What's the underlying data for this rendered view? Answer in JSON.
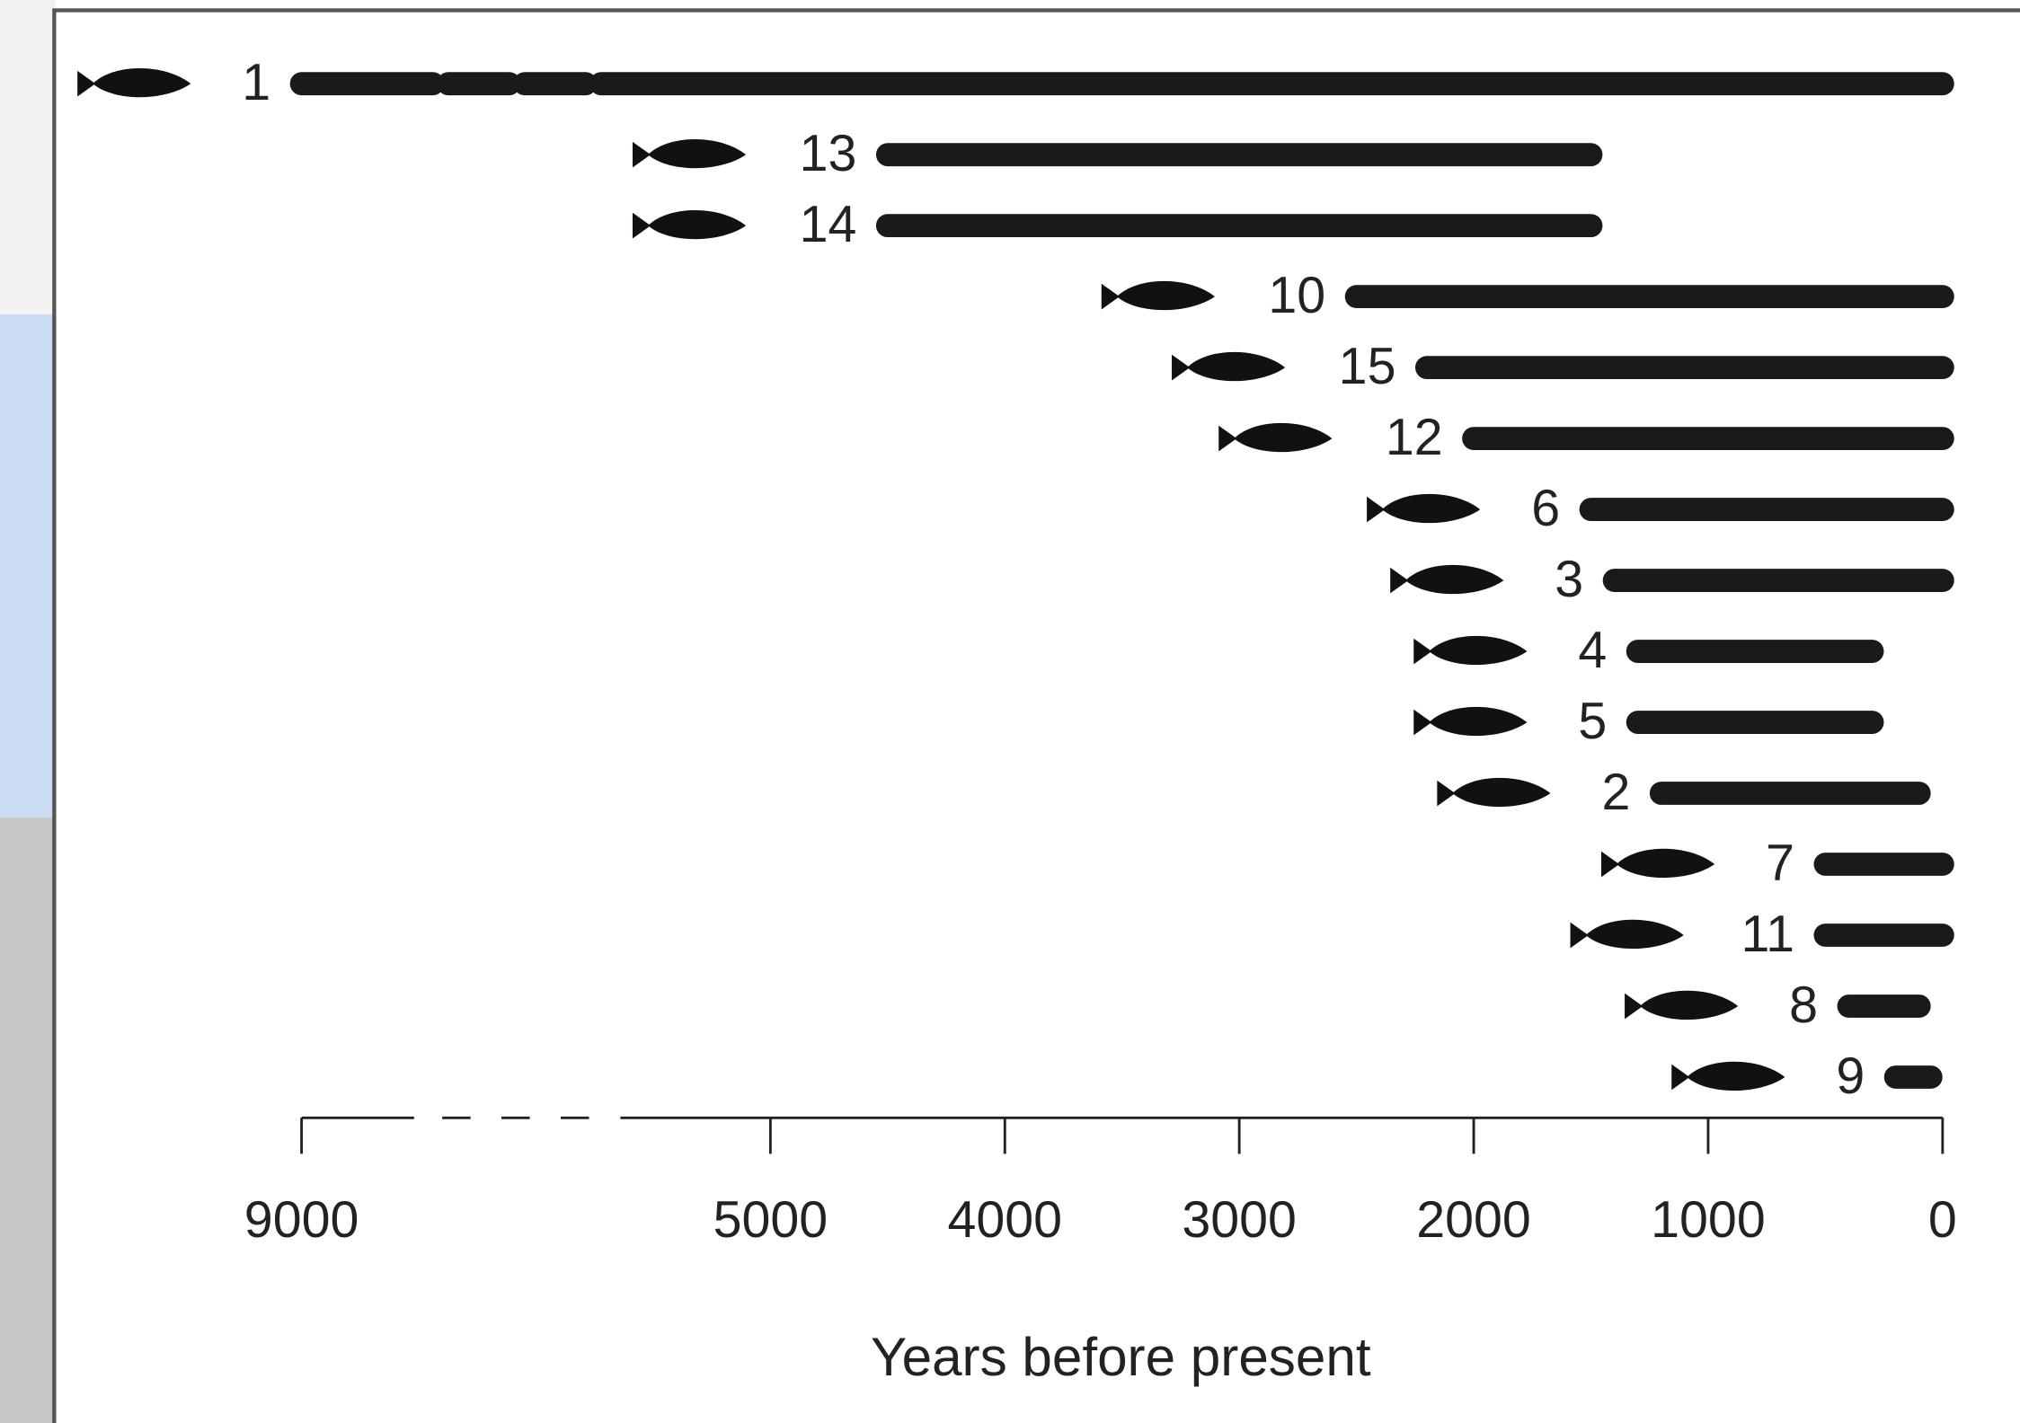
{
  "chart_data": {
    "type": "range_bar",
    "x_label": "Years before present",
    "categories": [
      "1",
      "13",
      "14",
      "10",
      "15",
      "12",
      "6",
      "3",
      "4",
      "5",
      "2",
      "7",
      "11",
      "8",
      "9"
    ],
    "starts": [
      9000,
      4500,
      4500,
      2500,
      2200,
      2000,
      1500,
      1400,
      1300,
      1300,
      1200,
      500,
      500,
      400,
      200
    ],
    "ends": [
      0,
      1500,
      1500,
      0,
      0,
      0,
      0,
      0,
      300,
      300,
      100,
      0,
      0,
      100,
      50
    ],
    "color": "#1a1a1a",
    "xlim": [
      9000,
      0
    ],
    "xticks": [
      9000,
      5000,
      4000,
      3000,
      2000,
      1000,
      0
    ],
    "x_break": [
      5000,
      9000
    ]
  }
}
